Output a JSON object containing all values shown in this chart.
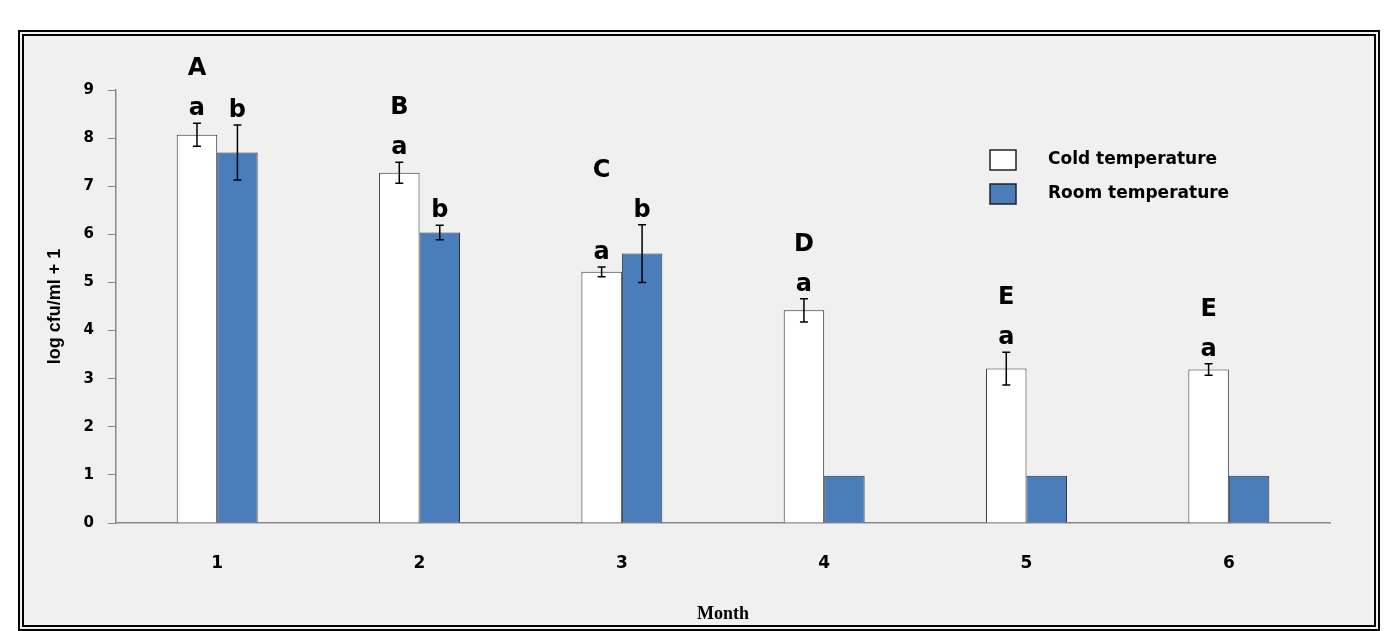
{
  "chart_data": {
    "type": "bar",
    "xlabel": "Month",
    "ylabel": "log cfu/ml + 1",
    "categories": [
      "1",
      "2",
      "3",
      "4",
      "5",
      "6"
    ],
    "series": [
      {
        "name": "Cold temperature",
        "color": "#ffffff",
        "values": [
          8.07,
          7.28,
          5.22,
          4.42,
          3.21,
          3.19
        ],
        "errors": [
          0.24,
          0.22,
          0.1,
          0.24,
          0.34,
          0.12
        ]
      },
      {
        "name": "Room temperature",
        "color": "#4a7ebb",
        "values": [
          7.7,
          6.04,
          5.6,
          0.98,
          0.98,
          0.98
        ],
        "errors": [
          0.57,
          0.15,
          0.6,
          null,
          null,
          null
        ]
      }
    ],
    "ylim": [
      0,
      9
    ],
    "yticks": [
      0,
      1,
      2,
      3,
      4,
      5,
      6,
      7,
      8,
      9
    ],
    "legend": "top right",
    "annotations": [
      "A",
      "a",
      "b",
      "B",
      "a",
      "b",
      "C",
      "a",
      "b",
      "D",
      "a",
      "E",
      "a",
      "E",
      "a"
    ]
  }
}
